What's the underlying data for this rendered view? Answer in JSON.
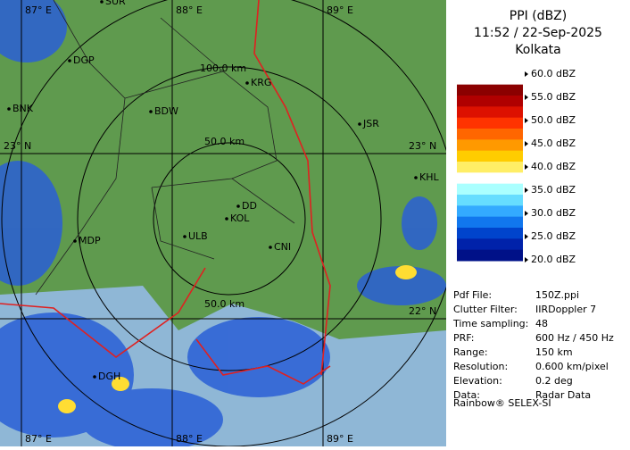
{
  "header": {
    "title": "PPI (dBZ)",
    "time": "11:52 / 22-Sep-2025",
    "location": "Kolkata"
  },
  "legend": {
    "labels": [
      "60.0 dBZ",
      "55.0 dBZ",
      "50.0 dBZ",
      "45.0 dBZ",
      "40.0 dBZ",
      "35.0 dBZ",
      "30.0 dBZ",
      "25.0 dBZ",
      "20.0 dBZ"
    ],
    "colors": [
      "#ffffff",
      "#ffffff",
      "#8b0000",
      "#b00000",
      "#dd1100",
      "#ff3300",
      "#ff6600",
      "#ff9900",
      "#ffcc00",
      "#ffee66",
      "#ffffff",
      "#aaffff",
      "#66ddff",
      "#33aaff",
      "#1177ee",
      "#0044cc",
      "#0022aa",
      "#001188"
    ]
  },
  "info": {
    "rows": [
      [
        "Pdf File:",
        "150Z.ppi"
      ],
      [
        "Clutter Filter:",
        "IIRDoppler 7"
      ],
      [
        "Time sampling:",
        "48"
      ],
      [
        "PRF:",
        "600 Hz / 450 Hz"
      ],
      [
        "Range:",
        "150 km"
      ],
      [
        "Resolution:",
        "0.600 km/pixel"
      ],
      [
        "Elevation:",
        "0.2 deg"
      ],
      [
        "Data:",
        "Radar Data"
      ]
    ],
    "footer": "Rainbow® SELEX-SI"
  },
  "map": {
    "grid_labels": [
      "87° E",
      "88° E",
      "89° E",
      "87° E",
      "88° E",
      "89° E",
      "23° N",
      "23° N",
      "22° N"
    ],
    "range_labels": [
      "100.0 km",
      "50.0 km",
      "50.0 km"
    ],
    "places": [
      "SUR",
      "DGP",
      "BNK",
      "BDW",
      "KRG",
      "JSR",
      "KHL",
      "DD",
      "KOL",
      "ULB",
      "CNI",
      "MDP",
      "DGH"
    ]
  }
}
